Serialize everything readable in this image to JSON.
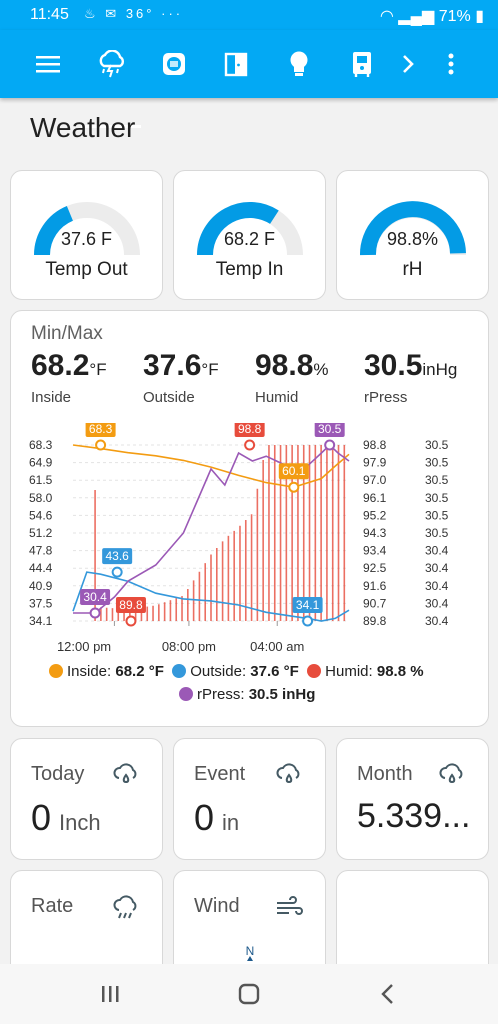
{
  "status": {
    "time": "11:45",
    "temp": "36°",
    "battery": "71%"
  },
  "page_title": "Weather",
  "gauges": [
    {
      "value": "37.6 F",
      "name": "Temp Out",
      "fraction": 0.376
    },
    {
      "value": "68.2 F",
      "name": "Temp In",
      "fraction": 0.682
    },
    {
      "value": "98.8%",
      "name": "rH",
      "fraction": 0.988
    }
  ],
  "minmax": {
    "title": "Min/Max",
    "stats": [
      {
        "value": "68.2",
        "unit": "°F",
        "label": "Inside"
      },
      {
        "value": "37.6",
        "unit": "°F",
        "label": "Outside"
      },
      {
        "value": "98.8",
        "unit": "%",
        "label": "Humid"
      },
      {
        "value": "30.5",
        "unit": "inHg",
        "label": "rPress"
      }
    ],
    "legend": [
      {
        "name": "Inside:",
        "value": "68.2 °F",
        "color": "#f39c12"
      },
      {
        "name": "Outside:",
        "value": "37.6 °F",
        "color": "#3498db"
      },
      {
        "name": "Humid:",
        "value": "98.8 %",
        "color": "#e74c3c"
      },
      {
        "name": "rPress:",
        "value": "30.5 inHg",
        "color": "#9b59b6"
      }
    ]
  },
  "chart_data": {
    "type": "line",
    "x_ticks": [
      "12:00 pm",
      "08:00 pm",
      "04:00 am"
    ],
    "y_left_ticks": [
      "68.3",
      "64.9",
      "61.5",
      "58.0",
      "54.6",
      "51.2",
      "47.8",
      "44.4",
      "40.9",
      "37.5",
      "34.1"
    ],
    "y_right1_ticks": [
      "98.8",
      "97.9",
      "97.0",
      "96.1",
      "95.2",
      "94.3",
      "93.4",
      "92.5",
      "91.6",
      "90.7",
      "89.8"
    ],
    "y_right2_ticks": [
      "30.5",
      "30.5",
      "30.5",
      "30.5",
      "30.5",
      "30.5",
      "30.4",
      "30.4",
      "30.4",
      "30.4",
      "30.4"
    ],
    "markers": [
      {
        "label": "68.3",
        "color": "#f39c12"
      },
      {
        "label": "98.8",
        "color": "#e74c3c"
      },
      {
        "label": "30.5",
        "color": "#9b59b6"
      },
      {
        "label": "60.1",
        "color": "#f39c12"
      },
      {
        "label": "43.6",
        "color": "#3498db"
      },
      {
        "label": "30.4",
        "color": "#9b59b6"
      },
      {
        "label": "89.8",
        "color": "#e74c3c"
      },
      {
        "label": "34.1",
        "color": "#3498db"
      }
    ],
    "series": [
      {
        "name": "Inside",
        "unit": "°F",
        "color": "#f39c12",
        "x": [
          0,
          0.1,
          0.2,
          0.3,
          0.4,
          0.5,
          0.6,
          0.7,
          0.8,
          0.9,
          0.95,
          1.0
        ],
        "values": [
          68.3,
          67.6,
          66.8,
          66.2,
          65.3,
          64.0,
          62.4,
          61.0,
          60.1,
          61.8,
          64.2,
          66.5
        ]
      },
      {
        "name": "Outside",
        "unit": "°F",
        "color": "#3498db",
        "x": [
          0,
          0.05,
          0.1,
          0.2,
          0.3,
          0.4,
          0.5,
          0.6,
          0.7,
          0.8,
          0.85,
          0.9,
          0.95,
          1.0
        ],
        "values": [
          36.0,
          43.6,
          43.2,
          41.8,
          39.5,
          38.4,
          38.0,
          37.2,
          35.8,
          35.0,
          34.6,
          34.1,
          34.6,
          36.2
        ]
      },
      {
        "name": "Humid",
        "unit": "%",
        "color": "#e74c3c",
        "x": [
          0.08,
          0.1,
          0.2,
          0.3,
          0.4,
          0.5,
          0.55,
          0.6,
          0.65,
          0.7,
          0.8,
          0.9,
          1.0
        ],
        "values": [
          96.5,
          90.5,
          90.4,
          90.6,
          91.1,
          93.2,
          94.0,
          94.6,
          95.3,
          98.8,
          98.8,
          98.8,
          98.8
        ]
      },
      {
        "name": "rPress",
        "unit": "inHg",
        "color": "#9b59b6",
        "x": [
          0,
          0.08,
          0.15,
          0.2,
          0.3,
          0.4,
          0.45,
          0.5,
          0.55,
          0.6,
          0.65,
          0.7,
          0.75,
          0.8,
          0.85,
          0.9,
          0.93,
          0.96,
          1.0
        ],
        "values": [
          30.4,
          30.4,
          30.41,
          30.42,
          30.43,
          30.45,
          30.47,
          30.49,
          30.48,
          30.5,
          30.495,
          30.498,
          30.494,
          30.49,
          30.492,
          30.5,
          30.505,
          30.5,
          30.495
        ]
      }
    ]
  },
  "bottom_tiles": [
    {
      "title": "Today",
      "value": "0",
      "unit": "Inch"
    },
    {
      "title": "Event",
      "value": "0",
      "unit": "in"
    },
    {
      "title": "Month",
      "value": "5.339...",
      "unit": ""
    },
    {
      "title": "Rate",
      "value": "",
      "unit": ""
    },
    {
      "title": "Wind",
      "value": "",
      "unit": ""
    },
    {
      "title": "",
      "value": "",
      "unit": ""
    }
  ],
  "compass": {
    "north": "N"
  }
}
